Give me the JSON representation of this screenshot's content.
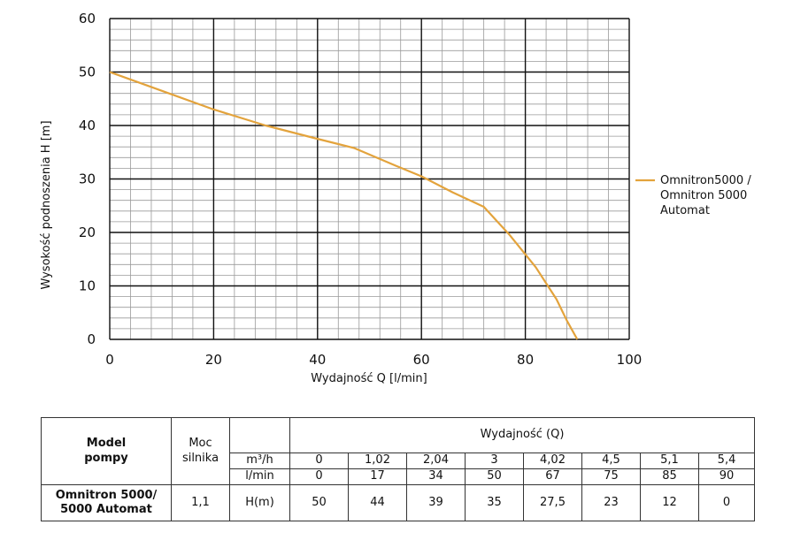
{
  "chart_data": {
    "type": "line",
    "xlabel": "Wydajność Q [l/min]",
    "ylabel": "Wysokość podnoszenia H [m]",
    "xlim": [
      0,
      100
    ],
    "ylim": [
      0,
      60
    ],
    "x_ticks": [
      "0",
      "20",
      "40",
      "60",
      "80",
      "100"
    ],
    "y_ticks": [
      "0",
      "10",
      "20",
      "30",
      "40",
      "50",
      "60"
    ],
    "grid": "on",
    "legend_position": "right",
    "color": "#E3A33C",
    "series": [
      {
        "name_lines": [
          "Omnitron5000 /",
          "Omnitron 5000",
          "Automat"
        ],
        "x": [
          0,
          10,
          20,
          30,
          40,
          47,
          55,
          60,
          66,
          72,
          77,
          82,
          86,
          88,
          90
        ],
        "y": [
          50,
          46.5,
          43,
          40,
          37.5,
          35.8,
          32.5,
          30.5,
          27.5,
          24.8,
          19.5,
          13.5,
          7.5,
          3.5,
          0
        ]
      }
    ]
  },
  "table": {
    "model_header": [
      "Model",
      "pompy"
    ],
    "power_header": [
      "Moc",
      "silnika"
    ],
    "flow_header": "Wydajność (Q)",
    "unit_m3h": "m³/h",
    "unit_lmin": "l/min",
    "unit_h": "H(m)",
    "m3h_values": [
      "0",
      "1,02",
      "2,04",
      "3",
      "4,02",
      "4,5",
      "5,1",
      "5,4"
    ],
    "lmin_values": [
      "0",
      "17",
      "34",
      "50",
      "67",
      "75",
      "85",
      "90"
    ],
    "h_values": [
      "50",
      "44",
      "39",
      "35",
      "27,5",
      "23",
      "12",
      "0"
    ],
    "model_name": [
      "Omnitron 5000/",
      "5000 Automat"
    ],
    "power_value": "1,1"
  }
}
